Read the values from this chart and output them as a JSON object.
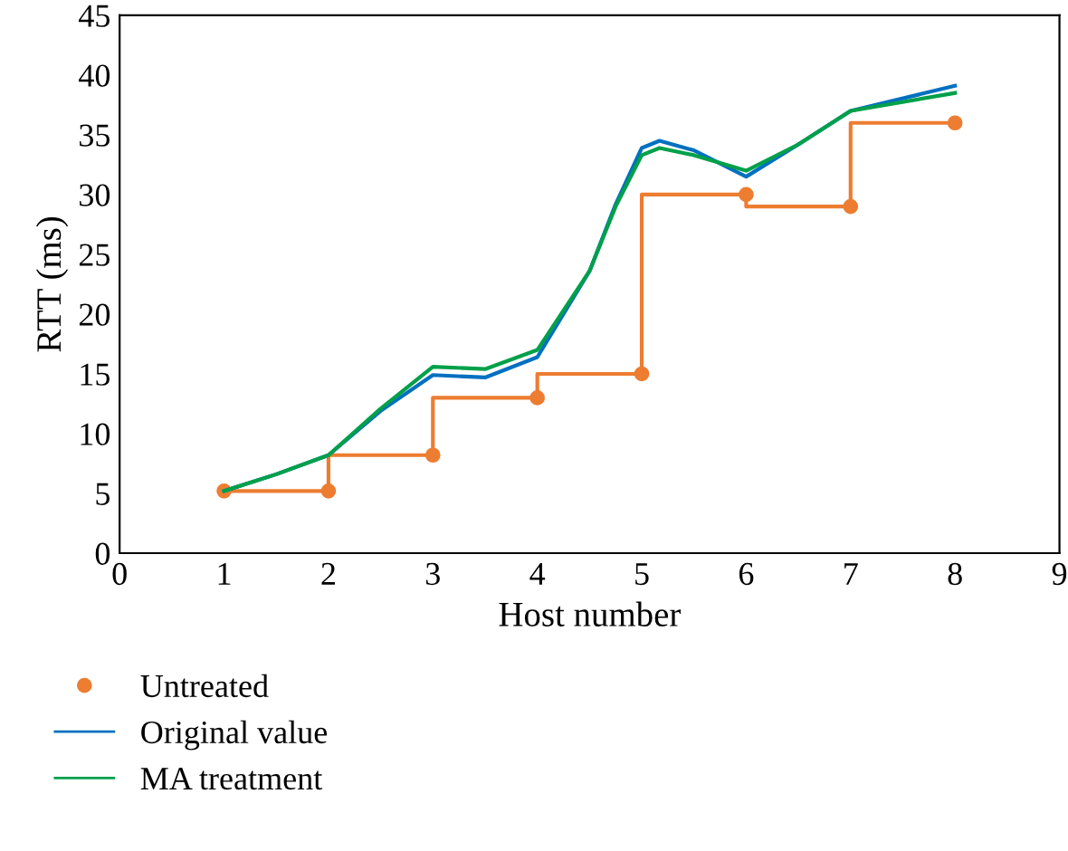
{
  "chart_data": {
    "type": "line",
    "xlabel": "Host number",
    "ylabel": "RTT (ms)",
    "xlim": [
      0,
      9
    ],
    "xticks": [
      0,
      1,
      2,
      3,
      4,
      5,
      6,
      7,
      8,
      9
    ],
    "ylim": [
      0,
      45
    ],
    "yticks": [
      0,
      5,
      10,
      15,
      20,
      25,
      30,
      35,
      40,
      45
    ],
    "grid": false,
    "legend": "bottom",
    "series": [
      {
        "name": "Untreated",
        "type": "step",
        "marker": "circle",
        "color": "#ed7d31",
        "x": [
          1,
          2,
          3,
          4,
          5,
          6,
          7,
          8
        ],
        "values": [
          5.2,
          5.2,
          8.2,
          13,
          15,
          30,
          29,
          36
        ]
      },
      {
        "name": "Original value",
        "color": "#0070c0",
        "x": [
          1,
          1.5,
          2,
          2.5,
          3,
          3.5,
          4,
          4.5,
          4.75,
          5,
          5.17,
          5.5,
          6,
          6.5,
          7,
          8
        ],
        "values": [
          5.2,
          6.6,
          8.2,
          11.9,
          14.9,
          14.7,
          16.4,
          23.6,
          29.2,
          33.9,
          34.5,
          33.7,
          31.5,
          34.2,
          37,
          39.1
        ]
      },
      {
        "name": "MA treatment",
        "color": "#00a04a",
        "x": [
          1,
          1.5,
          2,
          2.5,
          3,
          3.5,
          4,
          4.5,
          4.75,
          5,
          5.17,
          5.5,
          6,
          6.5,
          7,
          8
        ],
        "values": [
          5.2,
          6.6,
          8.2,
          12.1,
          15.6,
          15.4,
          17,
          23.6,
          29.0,
          33.3,
          33.9,
          33.3,
          32.0,
          34.2,
          37,
          38.5
        ]
      }
    ]
  }
}
